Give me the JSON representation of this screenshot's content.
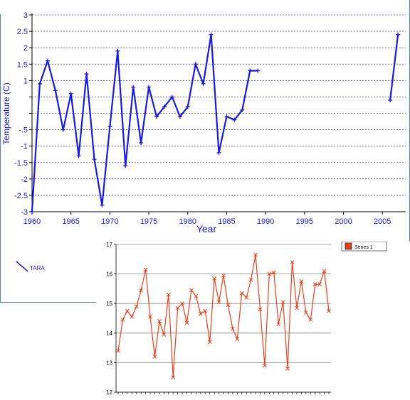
{
  "chart_data": [
    {
      "type": "line",
      "xlabel": "Year",
      "ylabel": "Temperature (C)",
      "xlim": [
        1960,
        2008
      ],
      "ylim": [
        -3,
        3
      ],
      "xticks": [
        1960,
        1965,
        1970,
        1975,
        1980,
        1985,
        1990,
        1995,
        2000,
        2005
      ],
      "yticks": [
        -3,
        -2.5,
        -2,
        -1.5,
        -1,
        -0.5,
        0,
        0.5,
        1,
        1.5,
        2,
        2.5,
        3
      ],
      "ytick_labels": [
        "-3",
        "-2.5",
        "-2",
        "-1.5",
        "-1",
        "-.5",
        "",
        "",
        "1",
        "1.5",
        "2",
        "2.5",
        "3"
      ],
      "grid": "horizontal dashed",
      "legend_position": "bottom-left",
      "color": "#1a1adb",
      "series": [
        {
          "name": "TARA",
          "segments": [
            {
              "x": [
                1960,
                1961,
                1962,
                1963,
                1964,
                1965,
                1966,
                1967,
                1968,
                1969,
                1970,
                1971,
                1972,
                1973,
                1974,
                1975,
                1976,
                1977,
                1978,
                1979,
                1980,
                1981,
                1982,
                1983,
                1984,
                1985,
                1986,
                1987,
                1988,
                1989
              ],
              "y": [
                -3.0,
                0.9,
                1.6,
                0.7,
                -0.5,
                0.6,
                -1.3,
                1.2,
                -1.4,
                -2.8,
                -0.4,
                1.9,
                -1.6,
                0.8,
                -0.9,
                0.8,
                -0.1,
                0.2,
                0.5,
                -0.1,
                0.2,
                1.5,
                0.9,
                2.4,
                -1.2,
                -0.1,
                -0.2,
                0.1,
                1.3,
                1.3
              ]
            },
            {
              "x": [
                2006,
                2007
              ],
              "y": [
                0.4,
                2.4
              ]
            }
          ]
        }
      ]
    },
    {
      "type": "line",
      "ylim": [
        12,
        17
      ],
      "yticks": [
        12,
        13,
        14,
        15,
        16,
        17
      ],
      "grid": "horizontal",
      "legend_position": "top-right",
      "color": "#e8401c",
      "series": [
        {
          "name": "Series 1",
          "values": [
            13.4,
            14.45,
            14.75,
            14.55,
            14.9,
            15.45,
            16.15,
            14.55,
            13.2,
            14.4,
            13.95,
            15.3,
            12.5,
            14.85,
            15.0,
            14.35,
            15.45,
            15.25,
            14.65,
            14.75,
            13.7,
            15.85,
            15.05,
            15.95,
            14.95,
            14.15,
            13.8,
            15.35,
            15.2,
            15.8,
            16.65,
            14.8,
            12.9,
            16.0,
            16.05,
            14.3,
            15.05,
            12.8,
            16.4,
            14.85,
            15.75,
            14.7,
            14.45,
            15.65,
            15.65,
            16.1,
            14.75
          ]
        }
      ]
    }
  ]
}
